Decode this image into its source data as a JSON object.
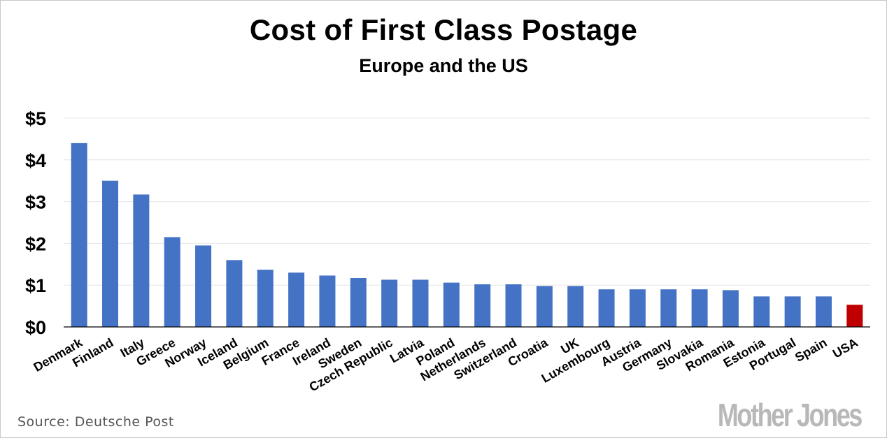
{
  "chart_data": {
    "type": "bar",
    "title": "Cost of First Class Postage",
    "subtitle": "Europe and the US",
    "categories": [
      "Denmark",
      "Finland",
      "Italy",
      "Greece",
      "Norway",
      "Iceland",
      "Belgium",
      "France",
      "Ireland",
      "Sweden",
      "Czech Republic",
      "Latvia",
      "Poland",
      "Netherlands",
      "Switzerland",
      "Croatia",
      "UK",
      "Luxembourg",
      "Austria",
      "Germany",
      "Slovakia",
      "Romania",
      "Estonia",
      "Portugal",
      "Spain",
      "USA"
    ],
    "values": [
      4.4,
      3.5,
      3.17,
      2.15,
      1.95,
      1.6,
      1.37,
      1.3,
      1.23,
      1.17,
      1.13,
      1.13,
      1.06,
      1.02,
      1.02,
      0.98,
      0.98,
      0.9,
      0.9,
      0.9,
      0.9,
      0.88,
      0.73,
      0.73,
      0.73,
      0.53
    ],
    "ylim": [
      0,
      5
    ],
    "yticks": [
      0,
      1,
      2,
      3,
      4,
      5
    ],
    "ytick_labels": [
      "$0",
      "$1",
      "$2",
      "$3",
      "$4",
      "$5"
    ],
    "xlabel": "",
    "ylabel": "",
    "grid": true,
    "legend": "none",
    "colors": {
      "default": "#4472c4",
      "highlight": "#c00000",
      "highlight_category": "USA",
      "grid": "#e6e6e6",
      "axis": "#000000"
    }
  },
  "source": "Source: Deutsche Post",
  "logo": "Mother Jones"
}
